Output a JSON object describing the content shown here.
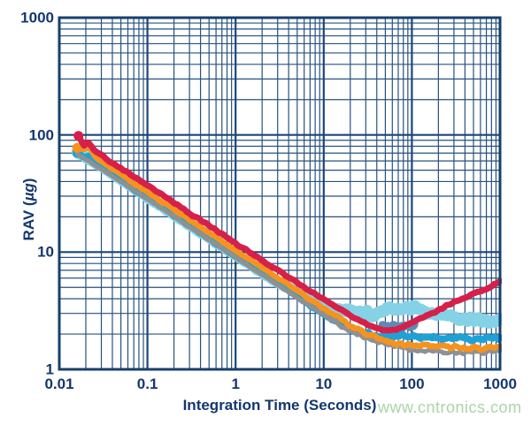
{
  "axes": {
    "xlabel": "Integration Time (Seconds)",
    "ylabel_prefix": "RAV (",
    "ylabel_italic": "µg",
    "ylabel_suffix": ")",
    "x_ticks": [
      {
        "v": 0.01,
        "label": "0.01"
      },
      {
        "v": 0.1,
        "label": "0.1"
      },
      {
        "v": 1,
        "label": "1"
      },
      {
        "v": 10,
        "label": "10"
      },
      {
        "v": 100,
        "label": "100"
      },
      {
        "v": 1000,
        "label": "1000"
      }
    ],
    "y_ticks": [
      {
        "v": 1,
        "label": "1"
      },
      {
        "v": 10,
        "label": "10"
      },
      {
        "v": 100,
        "label": "100"
      },
      {
        "v": 1000,
        "label": "1000"
      }
    ]
  },
  "watermark": {
    "text": "www.cntronics.com",
    "color": "#a9d7a4"
  },
  "colors": {
    "grid_major": "#1b4677",
    "grid_minor": "#27517f",
    "frame": "#16406e",
    "text": "#14376e",
    "background": "#ffffff"
  },
  "chart_data": {
    "type": "line",
    "title": "",
    "xlabel": "Integration Time (Seconds)",
    "ylabel": "RAV (µg)",
    "xscale": "log",
    "yscale": "log",
    "xlim": [
      0.01,
      1000
    ],
    "ylim": [
      1,
      1000
    ],
    "grid": "log major+minor, navy on white",
    "legend": "none",
    "series": [
      {
        "name": "trace-light-cyan",
        "color": "#85d2e6",
        "width": 13,
        "noise": 0.038,
        "dot": false,
        "points": [
          [
            0.016,
            71
          ],
          [
            0.03,
            54
          ],
          [
            0.05,
            42
          ],
          [
            0.1,
            29.5
          ],
          [
            0.2,
            21
          ],
          [
            0.5,
            13.3
          ],
          [
            1,
            9.4
          ],
          [
            2,
            6.8
          ],
          [
            3,
            5.6
          ],
          [
            5,
            4.5
          ],
          [
            7,
            3.9
          ],
          [
            10,
            3.5
          ],
          [
            15,
            3.2
          ],
          [
            20,
            3.05
          ],
          [
            30,
            3.0
          ],
          [
            40,
            3.05
          ],
          [
            60,
            3.2
          ],
          [
            80,
            3.3
          ],
          [
            100,
            3.3
          ],
          [
            150,
            3.15
          ],
          [
            200,
            3.0
          ],
          [
            300,
            2.85
          ],
          [
            400,
            2.7
          ],
          [
            500,
            2.65
          ],
          [
            700,
            2.55
          ],
          [
            1000,
            2.6
          ]
        ]
      },
      {
        "name": "trace-steel-blue",
        "color": "#5e8ab8",
        "width": 6.5,
        "noise": 0.02,
        "dot": false,
        "points": [
          [
            45,
            2.4
          ],
          [
            55,
            2.3
          ],
          [
            65,
            2.4
          ],
          [
            75,
            2.3
          ],
          [
            85,
            2.35
          ],
          [
            95,
            2.3
          ],
          [
            110,
            2.35
          ]
        ]
      },
      {
        "name": "trace-teal",
        "color": "#1fa1d6",
        "width": 7.5,
        "noise": 0.028,
        "dot": true,
        "points": [
          [
            0.016,
            70
          ],
          [
            0.019,
            64
          ],
          [
            0.022,
            67
          ],
          [
            0.026,
            57
          ],
          [
            0.03,
            53
          ],
          [
            0.04,
            46
          ],
          [
            0.05,
            41
          ],
          [
            0.07,
            34.5
          ],
          [
            0.1,
            29
          ],
          [
            0.15,
            23.8
          ],
          [
            0.2,
            20.5
          ],
          [
            0.3,
            16.8
          ],
          [
            0.5,
            13.0
          ],
          [
            0.7,
            11.0
          ],
          [
            1,
            9.2
          ],
          [
            1.5,
            7.6
          ],
          [
            2,
            6.6
          ],
          [
            3,
            5.4
          ],
          [
            5,
            4.2
          ],
          [
            7,
            3.5
          ],
          [
            10,
            2.95
          ],
          [
            15,
            2.5
          ],
          [
            20,
            2.2
          ],
          [
            30,
            2.0
          ],
          [
            40,
            1.95
          ],
          [
            50,
            1.9
          ],
          [
            70,
            1.9
          ],
          [
            100,
            1.95
          ],
          [
            150,
            1.9
          ],
          [
            200,
            1.85
          ],
          [
            300,
            1.9
          ],
          [
            400,
            1.85
          ],
          [
            500,
            1.8
          ],
          [
            700,
            1.85
          ],
          [
            1000,
            1.9
          ]
        ]
      },
      {
        "name": "trace-gray",
        "color": "#8d9194",
        "width": 5,
        "noise": 0.02,
        "dot": false,
        "points": [
          [
            0.016,
            69
          ],
          [
            0.1,
            28.5
          ],
          [
            1,
            9.0
          ],
          [
            10,
            2.9
          ],
          [
            20,
            2.1
          ],
          [
            30,
            1.85
          ],
          [
            50,
            1.65
          ],
          [
            80,
            1.5
          ],
          [
            100,
            1.45
          ],
          [
            150,
            1.45
          ],
          [
            200,
            1.4
          ],
          [
            300,
            1.4
          ],
          [
            400,
            1.38
          ],
          [
            500,
            1.42
          ],
          [
            700,
            1.4
          ],
          [
            1000,
            1.45
          ]
        ]
      },
      {
        "name": "trace-orange",
        "color": "#f6921e",
        "width": 6.5,
        "noise": 0.024,
        "dot": true,
        "points": [
          [
            0.016,
            78
          ],
          [
            0.019,
            75
          ],
          [
            0.022,
            77
          ],
          [
            0.026,
            64
          ],
          [
            0.03,
            59
          ],
          [
            0.04,
            51
          ],
          [
            0.05,
            46
          ],
          [
            0.07,
            38.5
          ],
          [
            0.1,
            32.5
          ],
          [
            0.15,
            26.5
          ],
          [
            0.2,
            23
          ],
          [
            0.3,
            18.8
          ],
          [
            0.5,
            14.6
          ],
          [
            0.7,
            12.3
          ],
          [
            1,
            10.3
          ],
          [
            1.5,
            8.5
          ],
          [
            2,
            7.4
          ],
          [
            3,
            6.0
          ],
          [
            5,
            4.7
          ],
          [
            7,
            3.95
          ],
          [
            10,
            3.3
          ],
          [
            15,
            2.75
          ],
          [
            20,
            2.4
          ],
          [
            30,
            2.0
          ],
          [
            40,
            1.85
          ],
          [
            50,
            1.75
          ],
          [
            70,
            1.65
          ],
          [
            100,
            1.6
          ],
          [
            150,
            1.58
          ],
          [
            200,
            1.55
          ],
          [
            300,
            1.55
          ],
          [
            400,
            1.5
          ],
          [
            500,
            1.55
          ],
          [
            700,
            1.5
          ],
          [
            1000,
            1.55
          ]
        ]
      },
      {
        "name": "trace-red",
        "color": "#d6204a",
        "width": 7,
        "noise": 0.01,
        "base": 1.0,
        "dot": true,
        "points": [
          [
            0.0165,
            99
          ],
          [
            0.019,
            82
          ],
          [
            0.021,
            87
          ],
          [
            0.025,
            73
          ],
          [
            0.03,
            67
          ],
          [
            0.04,
            57
          ],
          [
            0.05,
            52
          ],
          [
            0.07,
            44
          ],
          [
            0.1,
            37
          ],
          [
            0.15,
            30.5
          ],
          [
            0.2,
            26.5
          ],
          [
            0.3,
            21.5
          ],
          [
            0.5,
            16.8
          ],
          [
            0.7,
            14.2
          ],
          [
            1,
            11.9
          ],
          [
            1.5,
            9.8
          ],
          [
            2,
            8.5
          ],
          [
            3,
            7.0
          ],
          [
            5,
            5.5
          ],
          [
            7,
            4.65
          ],
          [
            10,
            3.95
          ],
          [
            15,
            3.3
          ],
          [
            20,
            2.9
          ],
          [
            30,
            2.45
          ],
          [
            40,
            2.25
          ],
          [
            50,
            2.16
          ],
          [
            60,
            2.15
          ],
          [
            70,
            2.2
          ],
          [
            80,
            2.3
          ],
          [
            100,
            2.5
          ],
          [
            140,
            2.8
          ],
          [
            200,
            3.2
          ],
          [
            300,
            3.75
          ],
          [
            400,
            4.1
          ],
          [
            500,
            4.4
          ],
          [
            700,
            4.85
          ],
          [
            1000,
            5.6
          ]
        ]
      }
    ]
  }
}
